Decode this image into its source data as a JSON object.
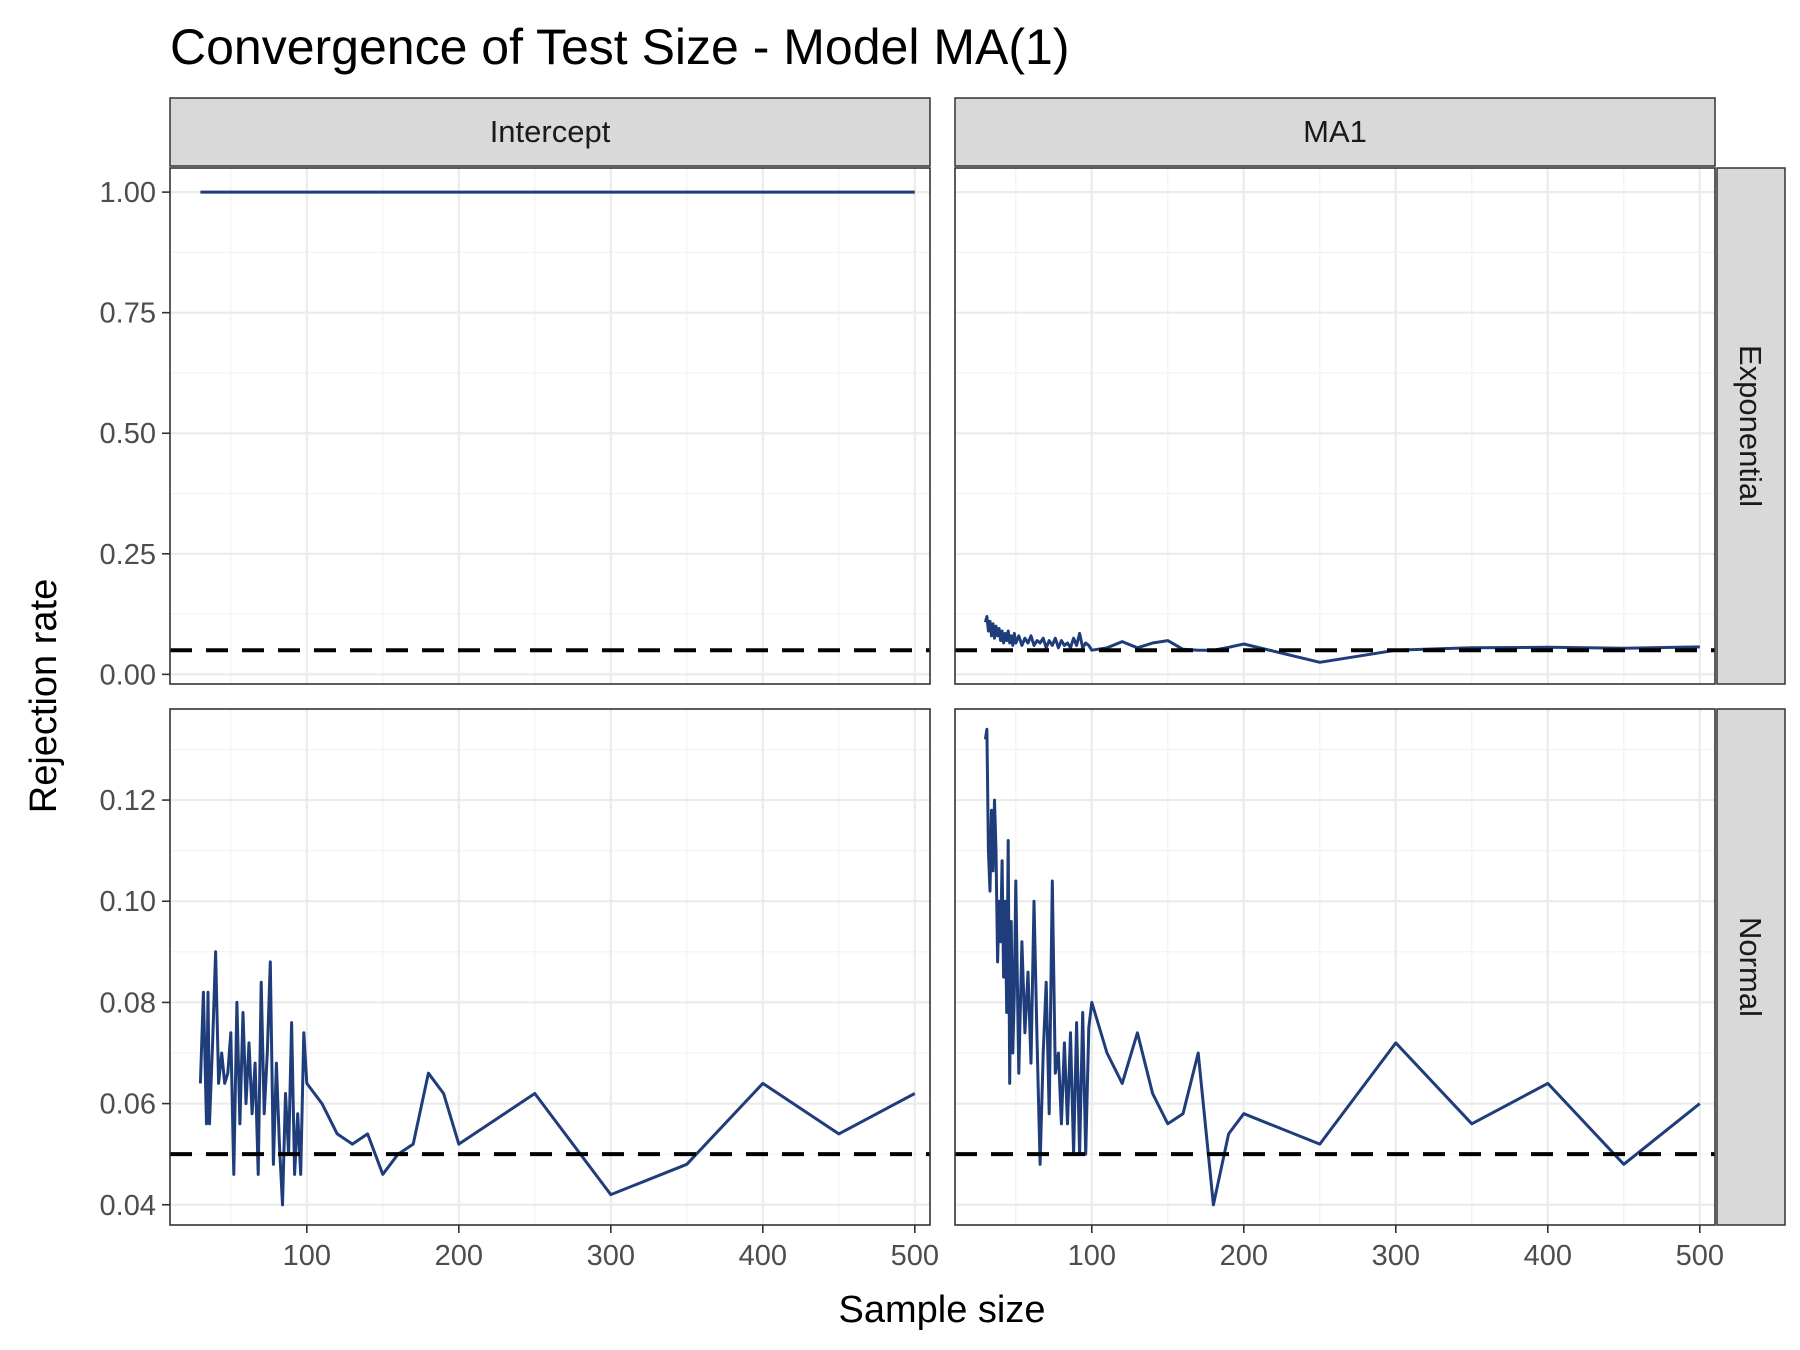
{
  "chart_data": {
    "type": "line",
    "title": "Convergence of Test Size - Model MA(1)",
    "xlabel": "Sample size",
    "ylabel": "Rejection rate",
    "reference_line": {
      "y": 0.05,
      "style": "dashed",
      "color": "#000000"
    },
    "line_color": "#1f3d7a",
    "grid": true,
    "facet_cols": [
      "Intercept",
      "MA1"
    ],
    "facet_rows": [
      "Exponential",
      "Normal"
    ],
    "x_axis": {
      "range": [
        10,
        510
      ],
      "ticks": [
        100,
        200,
        300,
        400,
        500
      ],
      "tick_labels": [
        "100",
        "200",
        "300",
        "400",
        "500"
      ]
    },
    "rows": [
      {
        "name": "Exponential",
        "y_range": [
          -0.02,
          1.05
        ],
        "y_ticks": [
          0.0,
          0.25,
          0.5,
          0.75,
          1.0
        ],
        "y_tick_labels": [
          "0.00",
          "0.25",
          "0.50",
          "0.75",
          "1.00"
        ]
      },
      {
        "name": "Normal",
        "y_range": [
          0.036,
          0.138
        ],
        "y_ticks": [
          0.04,
          0.06,
          0.08,
          0.1,
          0.12
        ],
        "y_tick_labels": [
          "0.04",
          "0.06",
          "0.08",
          "0.10",
          "0.12"
        ]
      }
    ],
    "panels": [
      {
        "row": "Exponential",
        "col": "Intercept",
        "x": [
          30,
          500
        ],
        "y": [
          1.0,
          1.0
        ]
      },
      {
        "row": "Exponential",
        "col": "MA1",
        "x": [
          30,
          31,
          32,
          33,
          34,
          35,
          36,
          37,
          38,
          39,
          40,
          41,
          42,
          43,
          44,
          45,
          46,
          47,
          48,
          49,
          50,
          52,
          54,
          56,
          58,
          60,
          62,
          64,
          66,
          68,
          70,
          72,
          74,
          76,
          78,
          80,
          82,
          84,
          86,
          88,
          90,
          92,
          94,
          96,
          98,
          100,
          110,
          120,
          130,
          140,
          150,
          160,
          170,
          180,
          190,
          200,
          250,
          300,
          350,
          400,
          450,
          500
        ],
        "y": [
          0.108,
          0.12,
          0.09,
          0.11,
          0.08,
          0.105,
          0.075,
          0.1,
          0.08,
          0.095,
          0.07,
          0.09,
          0.065,
          0.085,
          0.07,
          0.09,
          0.065,
          0.08,
          0.06,
          0.085,
          0.065,
          0.08,
          0.06,
          0.075,
          0.065,
          0.08,
          0.06,
          0.07,
          0.065,
          0.075,
          0.055,
          0.07,
          0.06,
          0.075,
          0.055,
          0.07,
          0.06,
          0.065,
          0.055,
          0.075,
          0.06,
          0.085,
          0.055,
          0.065,
          0.06,
          0.05,
          0.055,
          0.068,
          0.055,
          0.065,
          0.07,
          0.052,
          0.05,
          0.05,
          0.056,
          0.063,
          0.025,
          0.05,
          0.055,
          0.056,
          0.054,
          0.057
        ]
      },
      {
        "row": "Normal",
        "col": "Intercept",
        "x": [
          30,
          32,
          34,
          35,
          36,
          38,
          40,
          42,
          44,
          46,
          48,
          50,
          52,
          54,
          56,
          58,
          60,
          62,
          64,
          66,
          68,
          70,
          72,
          74,
          76,
          78,
          80,
          82,
          84,
          86,
          88,
          90,
          92,
          94,
          96,
          98,
          100,
          110,
          120,
          130,
          140,
          150,
          160,
          170,
          180,
          190,
          200,
          250,
          300,
          350,
          400,
          450,
          500
        ],
        "y": [
          0.064,
          0.082,
          0.056,
          0.082,
          0.056,
          0.072,
          0.09,
          0.064,
          0.07,
          0.064,
          0.066,
          0.074,
          0.046,
          0.08,
          0.056,
          0.078,
          0.06,
          0.072,
          0.058,
          0.068,
          0.046,
          0.084,
          0.058,
          0.07,
          0.088,
          0.048,
          0.068,
          0.052,
          0.04,
          0.062,
          0.05,
          0.076,
          0.046,
          0.058,
          0.046,
          0.074,
          0.064,
          0.06,
          0.054,
          0.052,
          0.054,
          0.046,
          0.05,
          0.052,
          0.066,
          0.062,
          0.052,
          0.062,
          0.042,
          0.048,
          0.064,
          0.054,
          0.062
        ]
      },
      {
        "row": "Normal",
        "col": "MA1",
        "x": [
          30,
          31,
          32,
          33,
          34,
          35,
          36,
          37,
          38,
          39,
          40,
          41,
          42,
          43,
          44,
          45,
          46,
          47,
          48,
          49,
          50,
          52,
          54,
          56,
          58,
          60,
          62,
          64,
          66,
          68,
          70,
          72,
          74,
          76,
          78,
          80,
          82,
          84,
          86,
          88,
          90,
          92,
          94,
          96,
          98,
          100,
          110,
          120,
          130,
          140,
          150,
          160,
          170,
          180,
          190,
          200,
          250,
          300,
          350,
          400,
          450,
          500
        ],
        "y": [
          0.132,
          0.134,
          0.11,
          0.102,
          0.118,
          0.106,
          0.12,
          0.11,
          0.088,
          0.1,
          0.092,
          0.108,
          0.085,
          0.1,
          0.078,
          0.112,
          0.064,
          0.096,
          0.07,
          0.082,
          0.104,
          0.066,
          0.092,
          0.074,
          0.086,
          0.068,
          0.1,
          0.072,
          0.048,
          0.07,
          0.084,
          0.058,
          0.104,
          0.066,
          0.07,
          0.056,
          0.072,
          0.056,
          0.074,
          0.05,
          0.076,
          0.05,
          0.078,
          0.05,
          0.075,
          0.08,
          0.07,
          0.064,
          0.074,
          0.062,
          0.056,
          0.058,
          0.07,
          0.04,
          0.054,
          0.058,
          0.052,
          0.072,
          0.056,
          0.064,
          0.048,
          0.06
        ]
      }
    ]
  }
}
